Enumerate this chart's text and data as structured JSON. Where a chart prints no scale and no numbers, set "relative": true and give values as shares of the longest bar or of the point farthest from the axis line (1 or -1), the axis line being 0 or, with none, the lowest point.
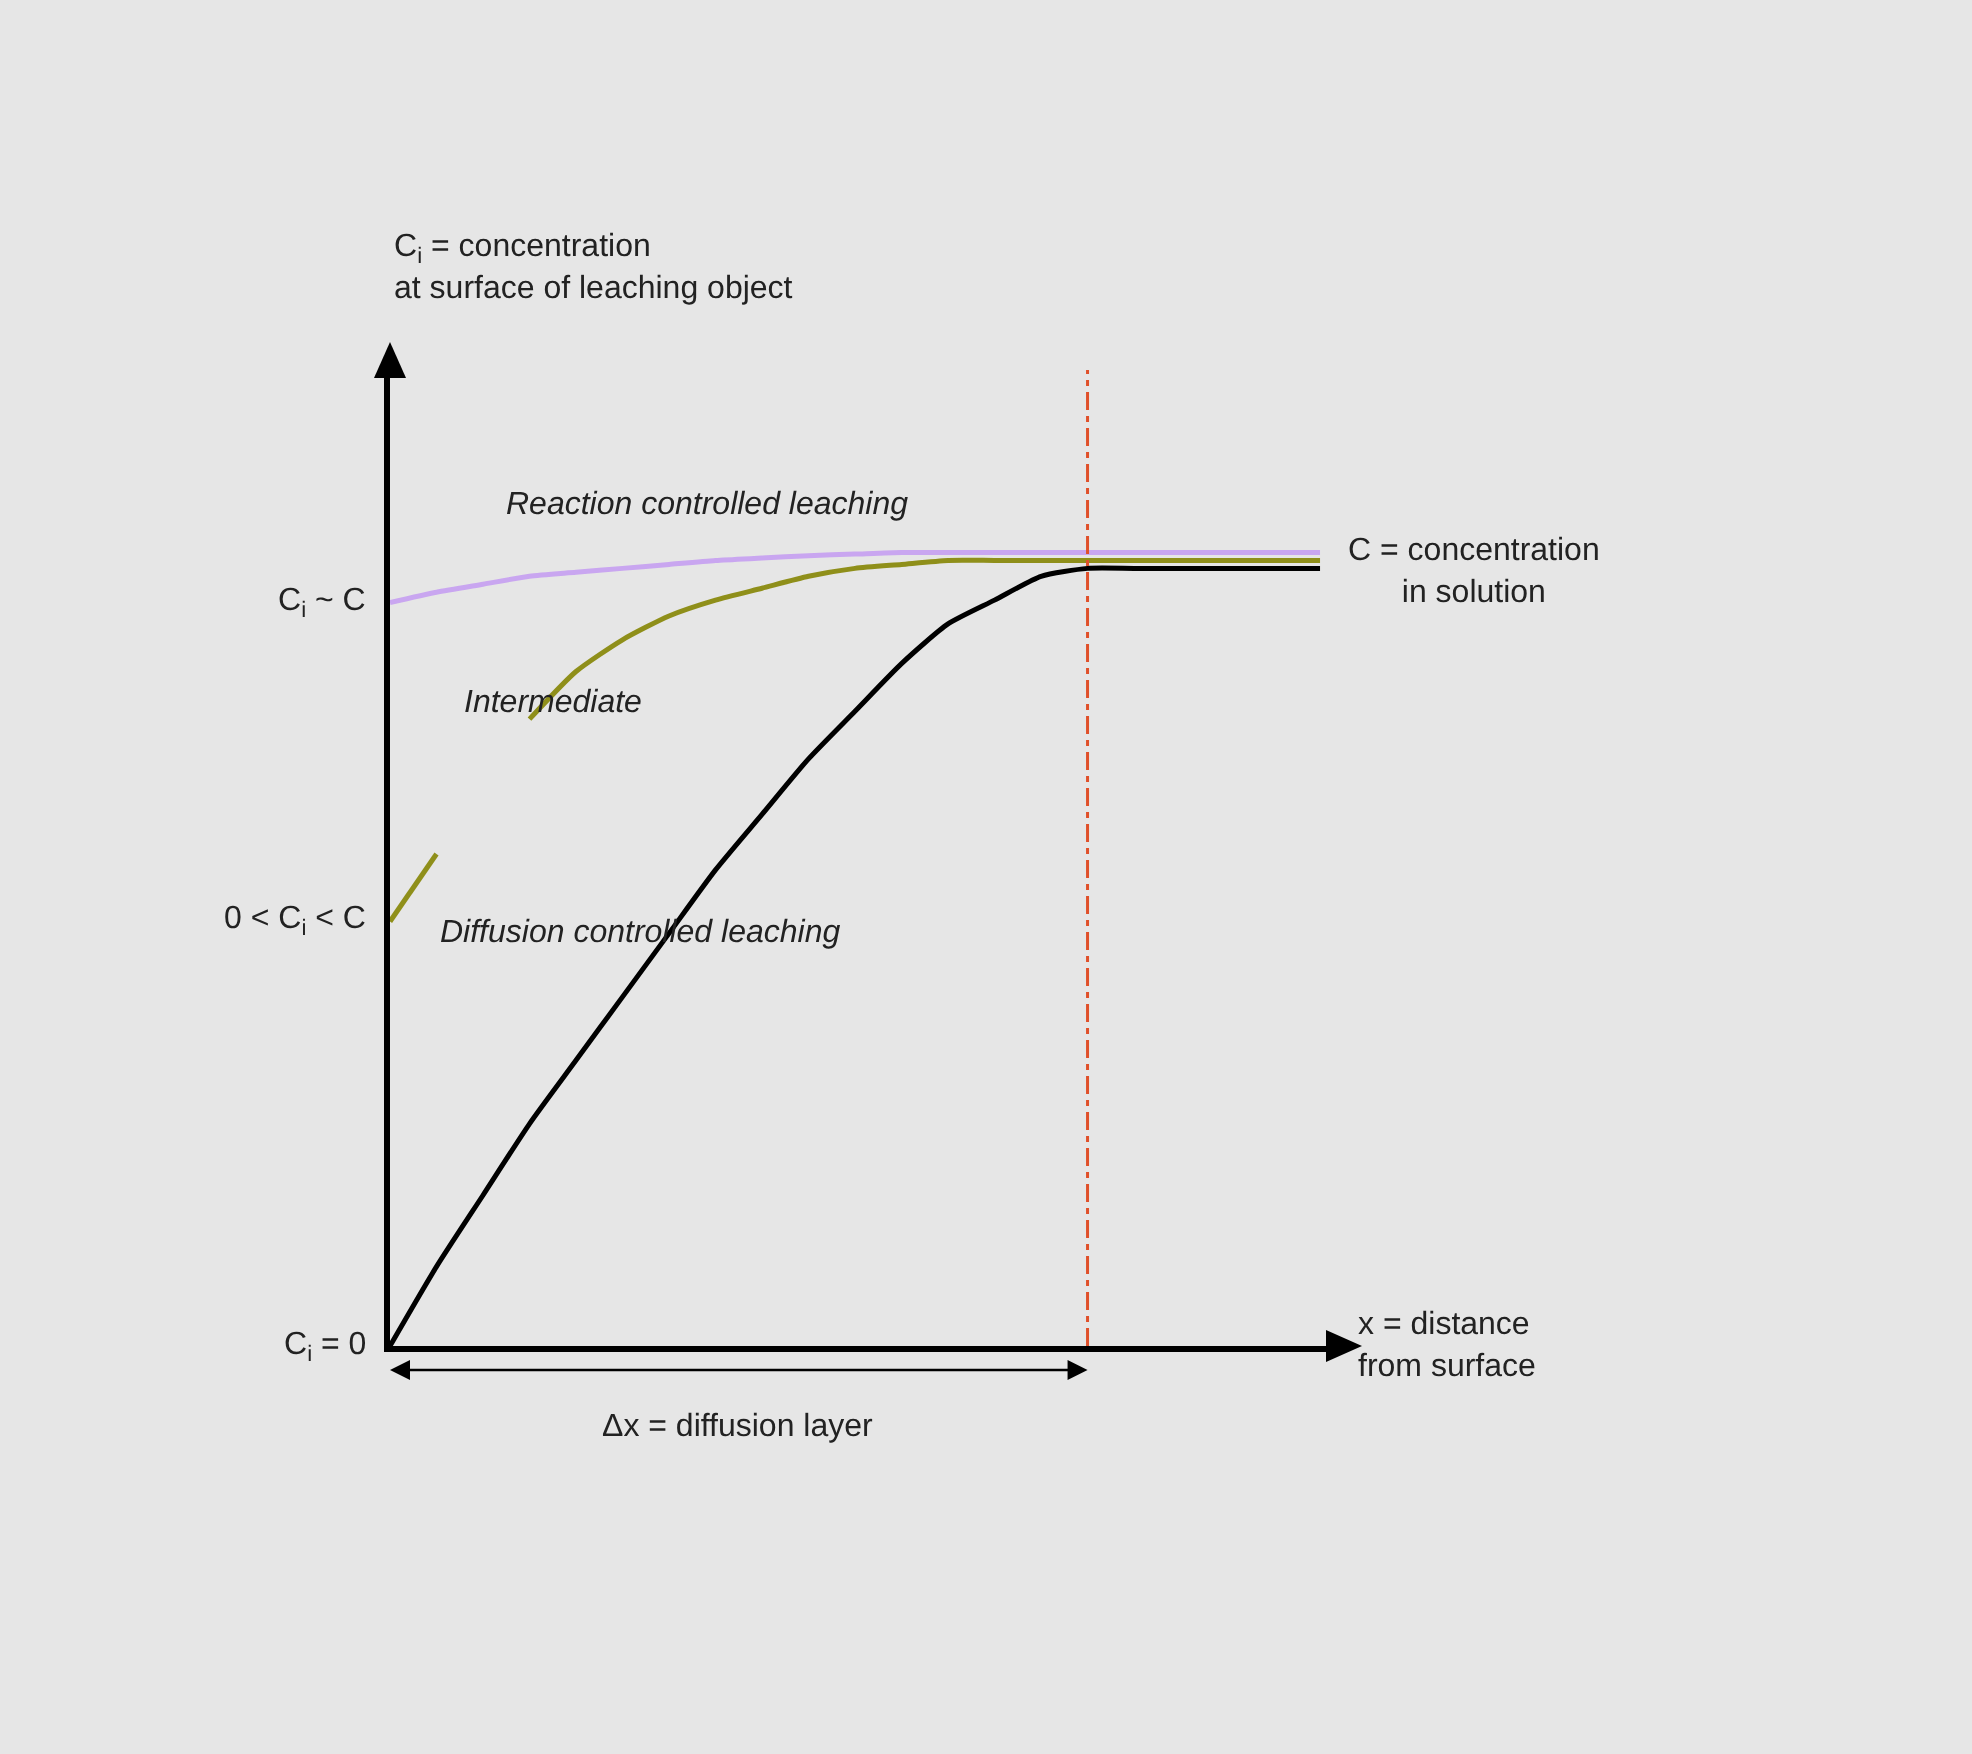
{
  "chart_data": {
    "type": "line",
    "relative": true,
    "legend": false,
    "marker": "none",
    "xlabel": "x = distance\nfrom surface",
    "categories": [
      null,
      null,
      null,
      null,
      null,
      null,
      null,
      null,
      null,
      null,
      null,
      null,
      null,
      null,
      null,
      null,
      null,
      null,
      null,
      null,
      null
    ],
    "series": [
      {
        "name": "Diffusion controlled leaching",
        "color": "#000000",
        "values": [
          0,
          0.1,
          0.19,
          0.28,
          0.36,
          0.44,
          0.52,
          0.6,
          0.67,
          0.74,
          0.8,
          0.86,
          0.91,
          0.94,
          0.97,
          0.98,
          0.98,
          0.98,
          0.98,
          0.98,
          0.98
        ]
      },
      {
        "name": "Intermediate",
        "color": "#8f8f1a",
        "values": [
          0.535,
          0.62,
          null,
          0.79,
          0.85,
          0.89,
          0.92,
          0.94,
          0.955,
          0.97,
          0.98,
          0.985,
          0.99,
          0.99,
          0.99,
          0.99,
          0.99,
          0.99,
          0.99,
          0.99,
          0.99
        ]
      },
      {
        "name": "Reaction controlled leaching",
        "color": "#c9a6f0",
        "values": [
          0.937,
          0.95,
          0.96,
          0.97,
          0.975,
          0.98,
          0.985,
          0.99,
          0.993,
          0.996,
          0.998,
          1,
          1,
          1,
          1,
          1,
          1,
          1,
          1,
          1,
          1
        ]
      }
    ],
    "annotations": [
      "C$_{i}$ = concentration\nat surface of leaching object",
      "C$_{i}$ ~ C",
      "0 < C$_{i}$ < C",
      "C$_{i}$ = 0",
      "C = concentration\nin solution",
      "Δx = diffusion layer"
    ]
  }
}
